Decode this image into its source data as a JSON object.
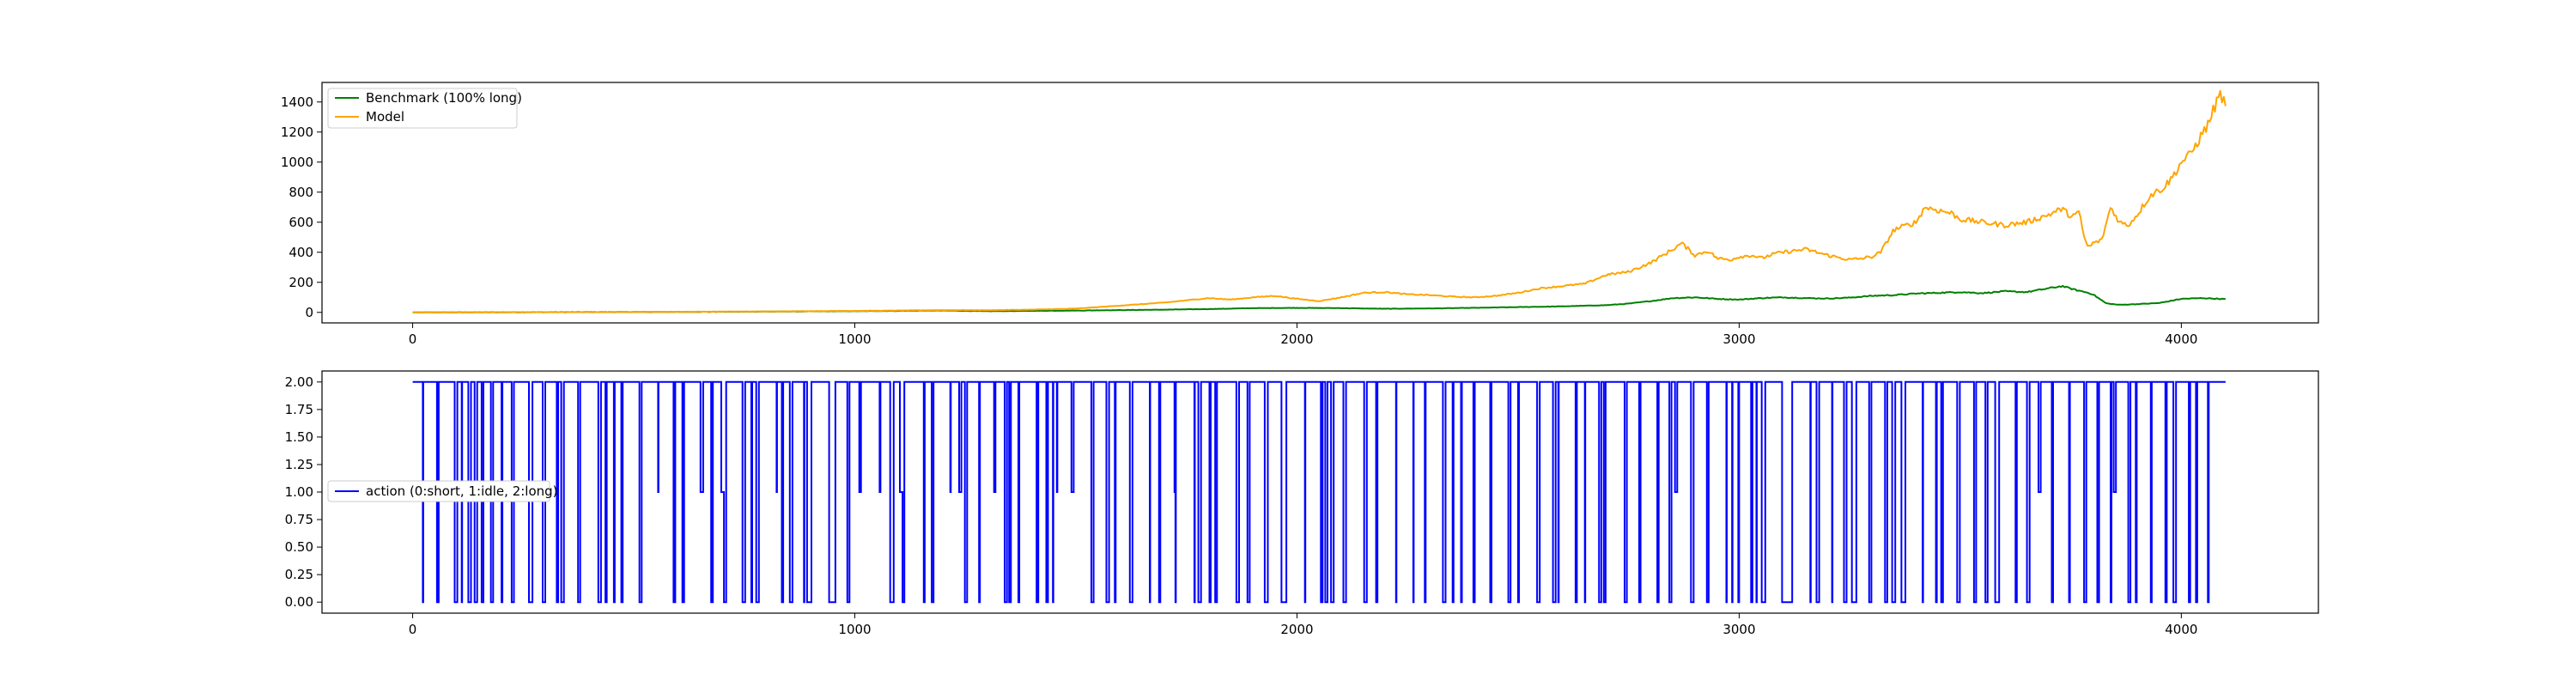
{
  "colors": {
    "benchmark": "#008000",
    "model": "#ffa500",
    "action": "#0000ff"
  },
  "chart_data": [
    {
      "type": "line",
      "title": "",
      "xlabel": "",
      "ylabel": "",
      "xlim": [
        -205,
        4310
      ],
      "ylim": [
        -70,
        1530
      ],
      "xticks": [
        0,
        1000,
        2000,
        3000,
        4000
      ],
      "yticks": [
        0,
        200,
        400,
        600,
        800,
        1000,
        1200,
        1400
      ],
      "grid": false,
      "legend_position": "upper left",
      "series": [
        {
          "name": "Benchmark (100% long)",
          "color": "#008000",
          "x": [
            0,
            200,
            400,
            600,
            800,
            1000,
            1100,
            1200,
            1300,
            1400,
            1500,
            1600,
            1700,
            1800,
            1900,
            2000,
            2100,
            2200,
            2300,
            2400,
            2500,
            2600,
            2700,
            2750,
            2800,
            2850,
            2900,
            2950,
            3000,
            3050,
            3100,
            3150,
            3200,
            3250,
            3300,
            3350,
            3400,
            3450,
            3500,
            3550,
            3600,
            3650,
            3700,
            3730,
            3760,
            3790,
            3800,
            3830,
            3860,
            3900,
            3950,
            4000,
            4050,
            4100
          ],
          "y": [
            0,
            1,
            2,
            3,
            5,
            8,
            10,
            12,
            8,
            10,
            12,
            15,
            18,
            22,
            28,
            30,
            28,
            24,
            26,
            30,
            35,
            40,
            48,
            58,
            75,
            95,
            100,
            90,
            85,
            95,
            100,
            95,
            92,
            98,
            110,
            115,
            125,
            130,
            135,
            128,
            140,
            135,
            160,
            175,
            150,
            130,
            120,
            60,
            50,
            55,
            62,
            90,
            95,
            88
          ]
        },
        {
          "name": "Model",
          "color": "#ffa500",
          "x": [
            0,
            200,
            400,
            600,
            800,
            1000,
            1100,
            1200,
            1300,
            1400,
            1500,
            1550,
            1600,
            1650,
            1700,
            1750,
            1800,
            1850,
            1900,
            1950,
            2000,
            2050,
            2100,
            2150,
            2200,
            2250,
            2300,
            2350,
            2400,
            2450,
            2500,
            2550,
            2600,
            2650,
            2700,
            2750,
            2800,
            2850,
            2870,
            2900,
            2930,
            2950,
            2980,
            3000,
            3030,
            3050,
            3080,
            3100,
            3150,
            3200,
            3250,
            3280,
            3300,
            3320,
            3350,
            3380,
            3400,
            3420,
            3450,
            3480,
            3500,
            3550,
            3600,
            3650,
            3700,
            3730,
            3750,
            3770,
            3780,
            3790,
            3800,
            3820,
            3840,
            3860,
            3880,
            3900,
            3930,
            3960,
            3980,
            4000,
            4020,
            4040,
            4060,
            4080,
            4090,
            4100
          ],
          "y": [
            0,
            1,
            2,
            4,
            6,
            10,
            12,
            15,
            14,
            18,
            25,
            35,
            45,
            55,
            65,
            80,
            95,
            85,
            100,
            110,
            90,
            75,
            100,
            130,
            135,
            120,
            115,
            105,
            100,
            110,
            130,
            160,
            175,
            190,
            250,
            270,
            330,
            420,
            460,
            380,
            410,
            360,
            350,
            370,
            380,
            360,
            390,
            400,
            420,
            380,
            350,
            360,
            370,
            400,
            550,
            580,
            600,
            700,
            680,
            660,
            620,
            600,
            580,
            600,
            650,
            690,
            640,
            660,
            500,
            430,
            460,
            480,
            700,
            600,
            580,
            650,
            780,
            830,
            900,
            1000,
            1050,
            1150,
            1250,
            1400,
            1460,
            1350
          ]
        }
      ]
    },
    {
      "type": "line",
      "title": "",
      "xlabel": "",
      "ylabel": "",
      "xlim": [
        -205,
        4310
      ],
      "ylim": [
        -0.1,
        2.1
      ],
      "xticks": [
        0,
        1000,
        2000,
        3000,
        4000
      ],
      "yticks": [
        0.0,
        0.25,
        0.5,
        0.75,
        1.0,
        1.25,
        1.5,
        1.75,
        2.0
      ],
      "ytick_labels": [
        "0.00",
        "0.25",
        "0.50",
        "0.75",
        "1.00",
        "1.25",
        "1.50",
        "1.75",
        "2.00"
      ],
      "xtick_labels": [
        "0",
        "1000",
        "2000",
        "3000",
        "4000"
      ],
      "grid": false,
      "legend_position": "center left",
      "drawstyle": "steps",
      "series": [
        {
          "name": "action (0:short, 1:idle, 2:long)",
          "color": "#0000ff",
          "n_points": 4100,
          "values_allowed": [
            0,
            1,
            2
          ],
          "dominant_value": 2,
          "note_free": true
        }
      ]
    }
  ],
  "tick_text": {
    "top_x": [
      "0",
      "1000",
      "2000",
      "3000",
      "4000"
    ],
    "top_y": [
      "0",
      "200",
      "400",
      "600",
      "800",
      "1000",
      "1200",
      "1400"
    ],
    "bottom_x": [
      "0",
      "1000",
      "2000",
      "3000",
      "4000"
    ],
    "bottom_y": [
      "0.00",
      "0.25",
      "0.50",
      "0.75",
      "1.00",
      "1.25",
      "1.50",
      "1.75",
      "2.00"
    ]
  },
  "legends": {
    "top": [
      "Benchmark (100% long)",
      "Model"
    ],
    "bottom": [
      "action (0:short, 1:idle, 2:long)"
    ]
  }
}
